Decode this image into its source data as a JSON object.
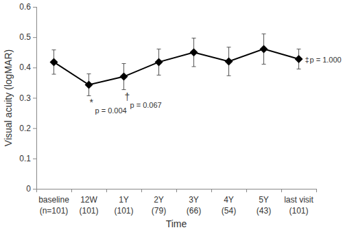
{
  "chart_data": {
    "type": "line",
    "y_label": "Visual acuity (logMAR)",
    "x_label": "Time",
    "categories": [
      "baseline\n(n=101)",
      "12W\n(101)",
      "1Y\n(101)",
      "2Y\n(79)",
      "3Y\n(66)",
      "4Y\n(54)",
      "5Y\n(43)",
      "last visit\n(101)"
    ],
    "values": [
      0.418,
      0.343,
      0.37,
      0.418,
      0.45,
      0.42,
      0.461,
      0.428
    ],
    "errors": [
      0.04,
      0.036,
      0.043,
      0.043,
      0.047,
      0.047,
      0.05,
      0.033
    ],
    "annotations": [
      null,
      {
        "symbol": "*",
        "text": "p = 0.004"
      },
      {
        "symbol": "†",
        "text": "p = 0.067"
      },
      null,
      null,
      null,
      null,
      {
        "symbol": "‡",
        "text": "p = 1.000"
      }
    ],
    "color": "#000000",
    "marker": "diamond",
    "ylim": [
      0,
      0.6
    ],
    "yticks": [
      0,
      0.1,
      0.2,
      0.3,
      0.4,
      0.5,
      0.6
    ],
    "grid": false
  }
}
